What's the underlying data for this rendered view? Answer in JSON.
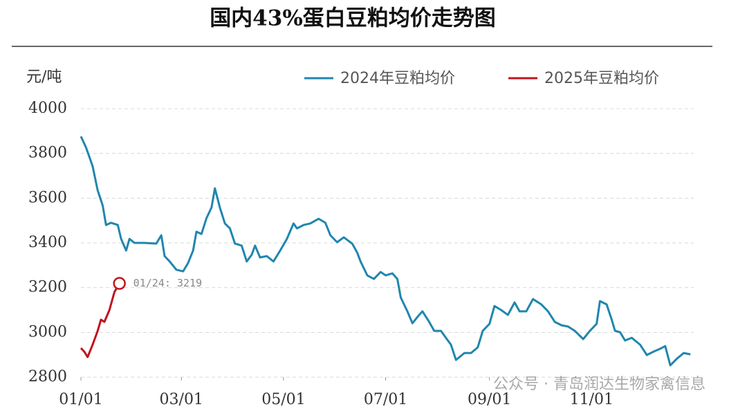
{
  "chart_data": {
    "type": "line",
    "title": "国内43%蛋白豆粕均价走势图",
    "y_label": "元/吨",
    "watermark": "公众号 · 青岛润达生物家禽信息",
    "xlim": [
      0,
      366
    ],
    "xticks": [
      {
        "value": 0,
        "label": "01/01"
      },
      {
        "value": 60,
        "label": "03/01"
      },
      {
        "value": 121,
        "label": "05/01"
      },
      {
        "value": 182,
        "label": "07/01"
      },
      {
        "value": 244,
        "label": "09/01"
      },
      {
        "value": 305,
        "label": "11/01"
      }
    ],
    "ylim": [
      2800,
      4000
    ],
    "yticks": [
      2800,
      3000,
      3200,
      3400,
      3600,
      3800,
      4000
    ],
    "grid": true,
    "legend": "top-right",
    "series": [
      {
        "name": "2024年豆粕均价",
        "color": "#1f86ae",
        "x": [
          0,
          3,
          7,
          10,
          13,
          15,
          18,
          22,
          24,
          27,
          29,
          32,
          38,
          45,
          48,
          50,
          53,
          57,
          61,
          64,
          67,
          69,
          72,
          75,
          78,
          80,
          83,
          86,
          89,
          92,
          96,
          99,
          102,
          104,
          107,
          111,
          115,
          119,
          123,
          127,
          129,
          133,
          137,
          142,
          146,
          149,
          153,
          157,
          162,
          165,
          167,
          171,
          175,
          179,
          182,
          186,
          189,
          191,
          195,
          198,
          202,
          204,
          208,
          211,
          215,
          218,
          221,
          224,
          229,
          233,
          237,
          240,
          244,
          247,
          251,
          255,
          259,
          262,
          266,
          270,
          275,
          279,
          283,
          287,
          291,
          295,
          300,
          304,
          308,
          310,
          314,
          317,
          319,
          322,
          325,
          329,
          334,
          338,
          342,
          346,
          349,
          352,
          356,
          360,
          364
        ],
        "values": [
          3876,
          3827,
          3743,
          3635,
          3567,
          3480,
          3490,
          3480,
          3418,
          3366,
          3418,
          3400,
          3400,
          3397,
          3434,
          3341,
          3317,
          3280,
          3273,
          3310,
          3366,
          3450,
          3440,
          3511,
          3558,
          3644,
          3558,
          3487,
          3465,
          3397,
          3388,
          3317,
          3347,
          3388,
          3335,
          3341,
          3317,
          3366,
          3418,
          3487,
          3465,
          3480,
          3487,
          3508,
          3490,
          3434,
          3403,
          3425,
          3397,
          3357,
          3317,
          3255,
          3239,
          3270,
          3255,
          3264,
          3239,
          3156,
          3094,
          3041,
          3078,
          3094,
          3047,
          3007,
          3007,
          2976,
          2945,
          2877,
          2908,
          2908,
          2933,
          3007,
          3038,
          3118,
          3100,
          3078,
          3134,
          3094,
          3094,
          3149,
          3125,
          3094,
          3047,
          3032,
          3026,
          3007,
          2970,
          3007,
          3038,
          3140,
          3125,
          3057,
          3007,
          3001,
          2964,
          2976,
          2945,
          2899,
          2914,
          2927,
          2939,
          2853,
          2883,
          2908,
          2902
        ]
      },
      {
        "name": "2025年豆粕均价",
        "color": "#c0141c",
        "x": [
          0,
          2,
          4,
          7,
          10,
          12,
          14,
          17,
          20,
          23
        ],
        "values": [
          2930,
          2914,
          2890,
          2945,
          3007,
          3057,
          3047,
          3100,
          3180,
          3219
        ]
      }
    ],
    "annotation": {
      "text": "01/24: 3219",
      "series": 1,
      "index": 9
    }
  }
}
